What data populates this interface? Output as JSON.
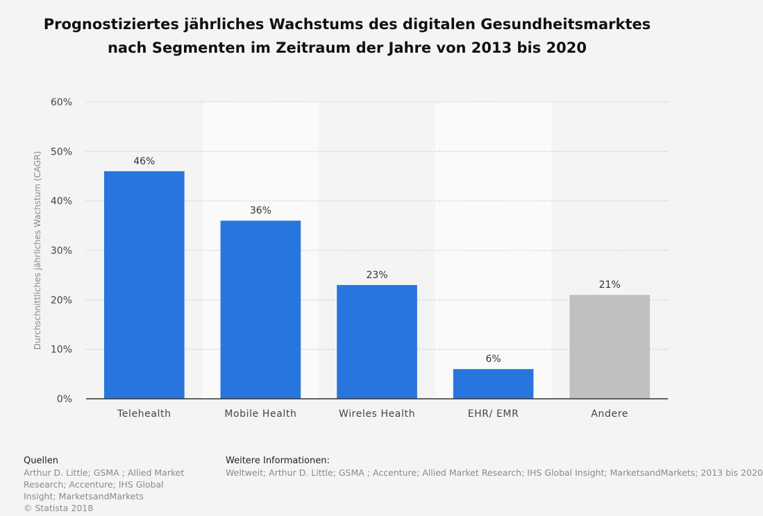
{
  "colors": {
    "primary_bar": "#2876dd",
    "other_bar": "#c0c0c0",
    "band": "#fafafa",
    "grid": "#c6c6c6",
    "axis": "#333333"
  },
  "chart_data": {
    "type": "bar",
    "title": "Prognostiziertes jährliches Wachstums des digitalen Gesundheitsmarktes nach Segmenten im Zeitraum der Jahre von 2013 bis 2020",
    "ylabel": "Durchschnittliches jährliches Wachstum (CAGR)",
    "xlabel": "",
    "ylim": [
      0,
      60
    ],
    "yticks": [
      "0%",
      "10%",
      "20%",
      "30%",
      "40%",
      "50%",
      "60%"
    ],
    "categories": [
      "Telehealth",
      "Mobile Health",
      "Wireles Health",
      "EHR/ EMR",
      "Andere"
    ],
    "values": [
      46,
      36,
      23,
      6,
      21
    ],
    "value_labels": [
      "46%",
      "36%",
      "23%",
      "6%",
      "21%"
    ],
    "grid": true,
    "legend": "none"
  },
  "footer": {
    "sources_heading": "Quellen",
    "sources_text": "Arthur D. Little; GSMA ; Allied Market Research; Accenture; IHS Global Insight; MarketsandMarkets",
    "copyright": "© Statista 2018",
    "info_heading": "Weitere Informationen:",
    "info_text": "Weltweit; Arthur D. Little; GSMA ; Accenture; Allied Market Research; IHS Global Insight; MarketsandMarkets; 2013 bis 2020"
  }
}
